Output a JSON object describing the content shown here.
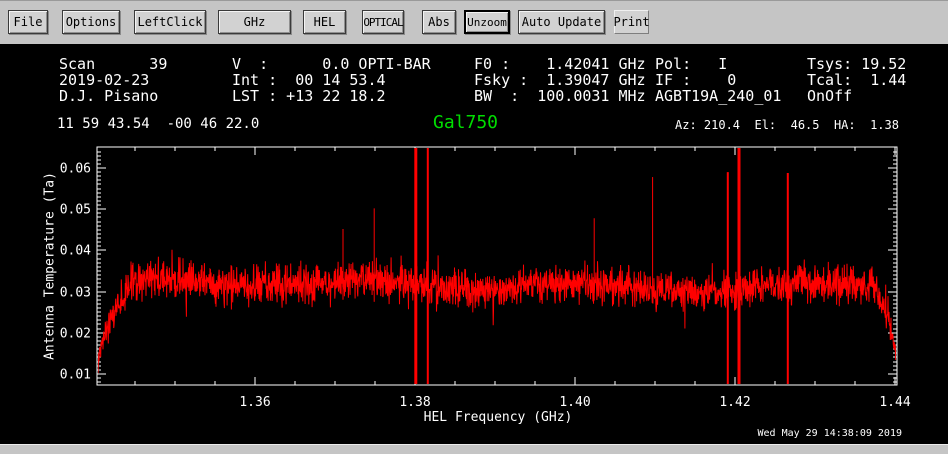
{
  "colors": {
    "toolbar_bg": "#c5c5c5",
    "panel_bg": "#000000",
    "text": "#ffffff",
    "source_green": "#00dd00",
    "plot_line": "#ff0000",
    "axis": "#ffffff"
  },
  "toolbar": {
    "buttons": [
      {
        "label": "File"
      },
      {
        "label": "Options"
      },
      {
        "label": "LeftClick"
      },
      {
        "label": "GHz"
      },
      {
        "label": "HEL"
      },
      {
        "label": "OPTICAL"
      },
      {
        "label": "Abs"
      },
      {
        "label": "Unzoom",
        "active": true
      },
      {
        "label": "Auto Update"
      },
      {
        "label": "Print"
      }
    ]
  },
  "header": {
    "col1": [
      "Scan      39",
      "2019-02-23",
      "D.J. Pisano"
    ],
    "col2": [
      "V  :      0.0 OPTI-BAR",
      "Int :  00 14 53.4",
      "LST : +13 22 18.2"
    ],
    "col3": [
      "F0 :    1.42041 GHz",
      "Fsky :  1.39047 GHz",
      "BW  :  100.0031 MHz"
    ],
    "col4": [
      "Pol:   I",
      "IF :    0",
      "AGBT19A_240_01"
    ],
    "col5": [
      "Tsys: 19.52",
      "Tcal:  1.44",
      "OnOff"
    ],
    "coords": "11 59 43.54  -00 46 22.0",
    "source": "Gal750",
    "azelha": "Az: 210.4  El:  46.5  HA:  1.38"
  },
  "footer": {
    "timestamp": "Wed May 29 14:38:09 2019"
  },
  "chart_data": {
    "type": "line",
    "title": "Gal750",
    "xlabel": "HEL Frequency (GHz)",
    "ylabel": "Antenna Temperature (Ta)",
    "xlim": [
      1.34025,
      1.44025
    ],
    "ylim": [
      0.0073,
      0.0651
    ],
    "xticks_major": [
      1.36,
      1.38,
      1.4,
      1.42,
      1.44
    ],
    "xtick_labels": [
      "1.36",
      "1.38",
      "1.40",
      "1.42",
      "1.44"
    ],
    "xtick_minor_step": 0.005,
    "yticks_major": [
      0.01,
      0.02,
      0.03,
      0.04,
      0.05,
      0.06
    ],
    "ytick_labels": [
      "0.01",
      "0.02",
      "0.03",
      "0.04",
      "0.05",
      "0.06"
    ],
    "ytick_minor_step": 0.001,
    "axis_color": "#ffffff",
    "line_color": "#ff0000",
    "baseline_level": 0.0315,
    "noise_sigma": 0.0022,
    "points": 2400,
    "seed": 20190529,
    "rolloff": {
      "left_end": 1.3448,
      "right_start": 1.4372,
      "edge_value": 0.0085
    },
    "spikes": [
      {
        "f": 1.371,
        "top": 0.0452,
        "bottom": 0.028,
        "w": 1
      },
      {
        "f": 1.3749,
        "top": 0.0502,
        "bottom": 0.0275,
        "w": 1
      },
      {
        "f": 1.3801,
        "top": 0.07,
        "bottom": 0.004,
        "w": 3
      },
      {
        "f": 1.3816,
        "top": 0.066,
        "bottom": 0.006,
        "w": 2
      },
      {
        "f": 1.4024,
        "top": 0.0478,
        "bottom": 0.0278,
        "w": 1
      },
      {
        "f": 1.4097,
        "top": 0.0578,
        "bottom": 0.0272,
        "w": 1
      },
      {
        "f": 1.4191,
        "top": 0.059,
        "bottom": 0.0048,
        "w": 2
      },
      {
        "f": 1.4205,
        "top": 0.07,
        "bottom": 0.004,
        "w": 3
      },
      {
        "f": 1.4266,
        "top": 0.0588,
        "bottom": 0.0058,
        "w": 2
      }
    ]
  }
}
